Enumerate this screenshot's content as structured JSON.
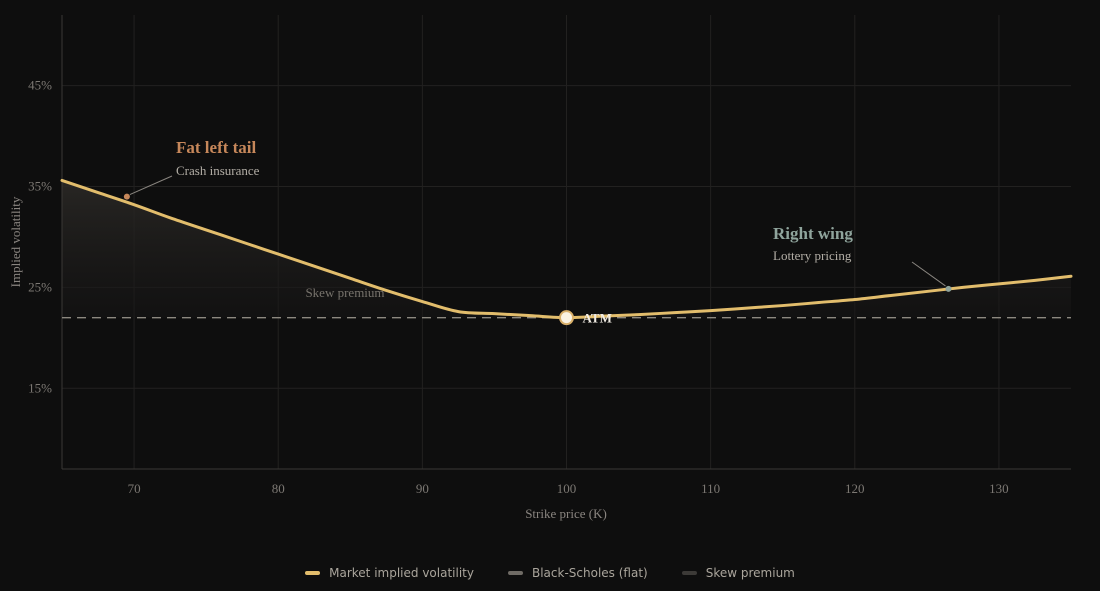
{
  "chart_data": {
    "type": "line",
    "xlabel": "Strike price (K)",
    "ylabel": "Implied volatility",
    "xlim": [
      65,
      135
    ],
    "ylim": [
      7,
      52
    ],
    "x_ticks": [
      70,
      80,
      90,
      100,
      110,
      120,
      130
    ],
    "y_ticks": [
      15,
      25,
      35,
      45
    ],
    "y_tick_labels": [
      "15%",
      "25%",
      "35%",
      "45%"
    ],
    "grid": true,
    "legend_position": "bottom",
    "series": [
      {
        "name": "Market implied volatility",
        "color": "#e2bd6c",
        "x": [
          65,
          67.5,
          70,
          72.5,
          75,
          77.5,
          80,
          82.5,
          85,
          87.5,
          90,
          92.5,
          95,
          97.5,
          100,
          102.5,
          105,
          107.5,
          110,
          112.5,
          115,
          117.5,
          120,
          122.5,
          125,
          127.5,
          130,
          132.5,
          135
        ],
        "values": [
          35.6,
          34.4,
          33.2,
          31.9,
          30.7,
          29.5,
          28.3,
          27.1,
          25.9,
          24.7,
          23.6,
          22.6,
          22.4,
          22.2,
          22.0,
          22.15,
          22.3,
          22.5,
          22.7,
          22.95,
          23.2,
          23.5,
          23.8,
          24.2,
          24.6,
          25.0,
          25.35,
          25.7,
          26.1
        ]
      },
      {
        "name": "Black-Scholes (flat)",
        "color": "#8c8880",
        "x": [
          65,
          135
        ],
        "values": [
          22.0,
          22.0
        ]
      },
      {
        "name": "Skew premium",
        "color": "#5c5954"
      }
    ],
    "annotations": {
      "left": {
        "title": "Fat left tail",
        "subtitle": "Crash insurance",
        "color": "#c6875a",
        "x": 69.5,
        "y": 34
      },
      "right": {
        "title": "Right wing",
        "subtitle": "Lottery pricing",
        "color": "#8fa49c",
        "x": 126.5,
        "y": 24.85
      },
      "region": {
        "label": "Skew premium"
      },
      "atm": {
        "label": "ATM",
        "x": 100,
        "y": 22.0
      }
    }
  }
}
